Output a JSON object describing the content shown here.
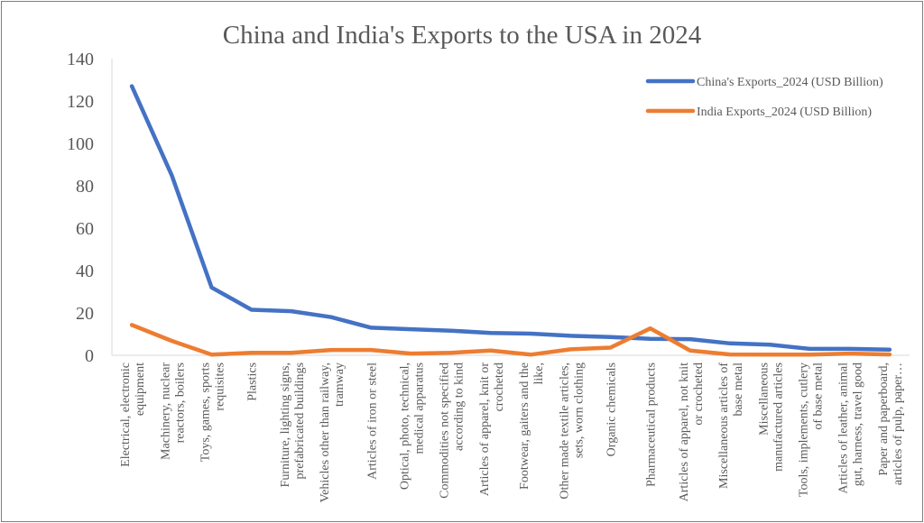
{
  "chart_data": {
    "type": "line",
    "title": "China and India's Exports to the USA in 2024",
    "xlabel": "",
    "ylabel": "",
    "ylim": [
      0,
      140
    ],
    "yticks": [
      0,
      20,
      40,
      60,
      80,
      100,
      120,
      140
    ],
    "grid": false,
    "legend_position": "top-right",
    "categories": [
      [
        "Electrical, electronic",
        "equipment"
      ],
      [
        "Machinery, nuclear",
        "reactors, boilers"
      ],
      [
        "Toys, games, sports",
        "requisites"
      ],
      [
        "Plastics"
      ],
      [
        "Furniture, lighting signs,",
        "prefabricated buildings"
      ],
      [
        "Vehicles other than railway,",
        "tramway"
      ],
      [
        "Articles of iron or steel"
      ],
      [
        "Optical, photo, technical,",
        "medical apparatus"
      ],
      [
        "Commodities not specified",
        "according to kind"
      ],
      [
        "Articles of apparel, knit or",
        "crocheted"
      ],
      [
        "Footwear, gaiters and the",
        "like,"
      ],
      [
        "Other made textile articles,",
        "sets, worn clothing"
      ],
      [
        "Organic chemicals"
      ],
      [
        "Pharmaceutical products"
      ],
      [
        "Articles of apparel, not knit",
        "or crocheted"
      ],
      [
        "Miscellaneous articles of",
        "base metal"
      ],
      [
        "Miscellaneous",
        "manufactured articles"
      ],
      [
        "Tools, implements, cutlery",
        "of base metal"
      ],
      [
        "Articles of leather, animal",
        "gut, harness, travel good"
      ],
      [
        "Paper and paperboard,",
        "articles of pulp, paper…"
      ]
    ],
    "series": [
      {
        "name": "China's Exports_2024 (USD Billion)",
        "color": "#4472c4",
        "values": [
          127,
          85,
          32,
          21.5,
          20.8,
          18,
          13,
          12.3,
          11.6,
          10.5,
          10.2,
          9.2,
          8.6,
          7.8,
          7.6,
          5.6,
          5,
          3,
          3,
          2.7
        ]
      },
      {
        "name": "India Exports_2024 (USD Billion)",
        "color": "#ed7d31",
        "values": [
          14.3,
          6.8,
          0.3,
          1.2,
          1.2,
          2.5,
          2.5,
          0.8,
          1.2,
          2.2,
          0.3,
          2.8,
          3.6,
          12.7,
          2.2,
          0.4,
          0.3,
          0.3,
          0.8,
          0.4
        ]
      }
    ]
  }
}
